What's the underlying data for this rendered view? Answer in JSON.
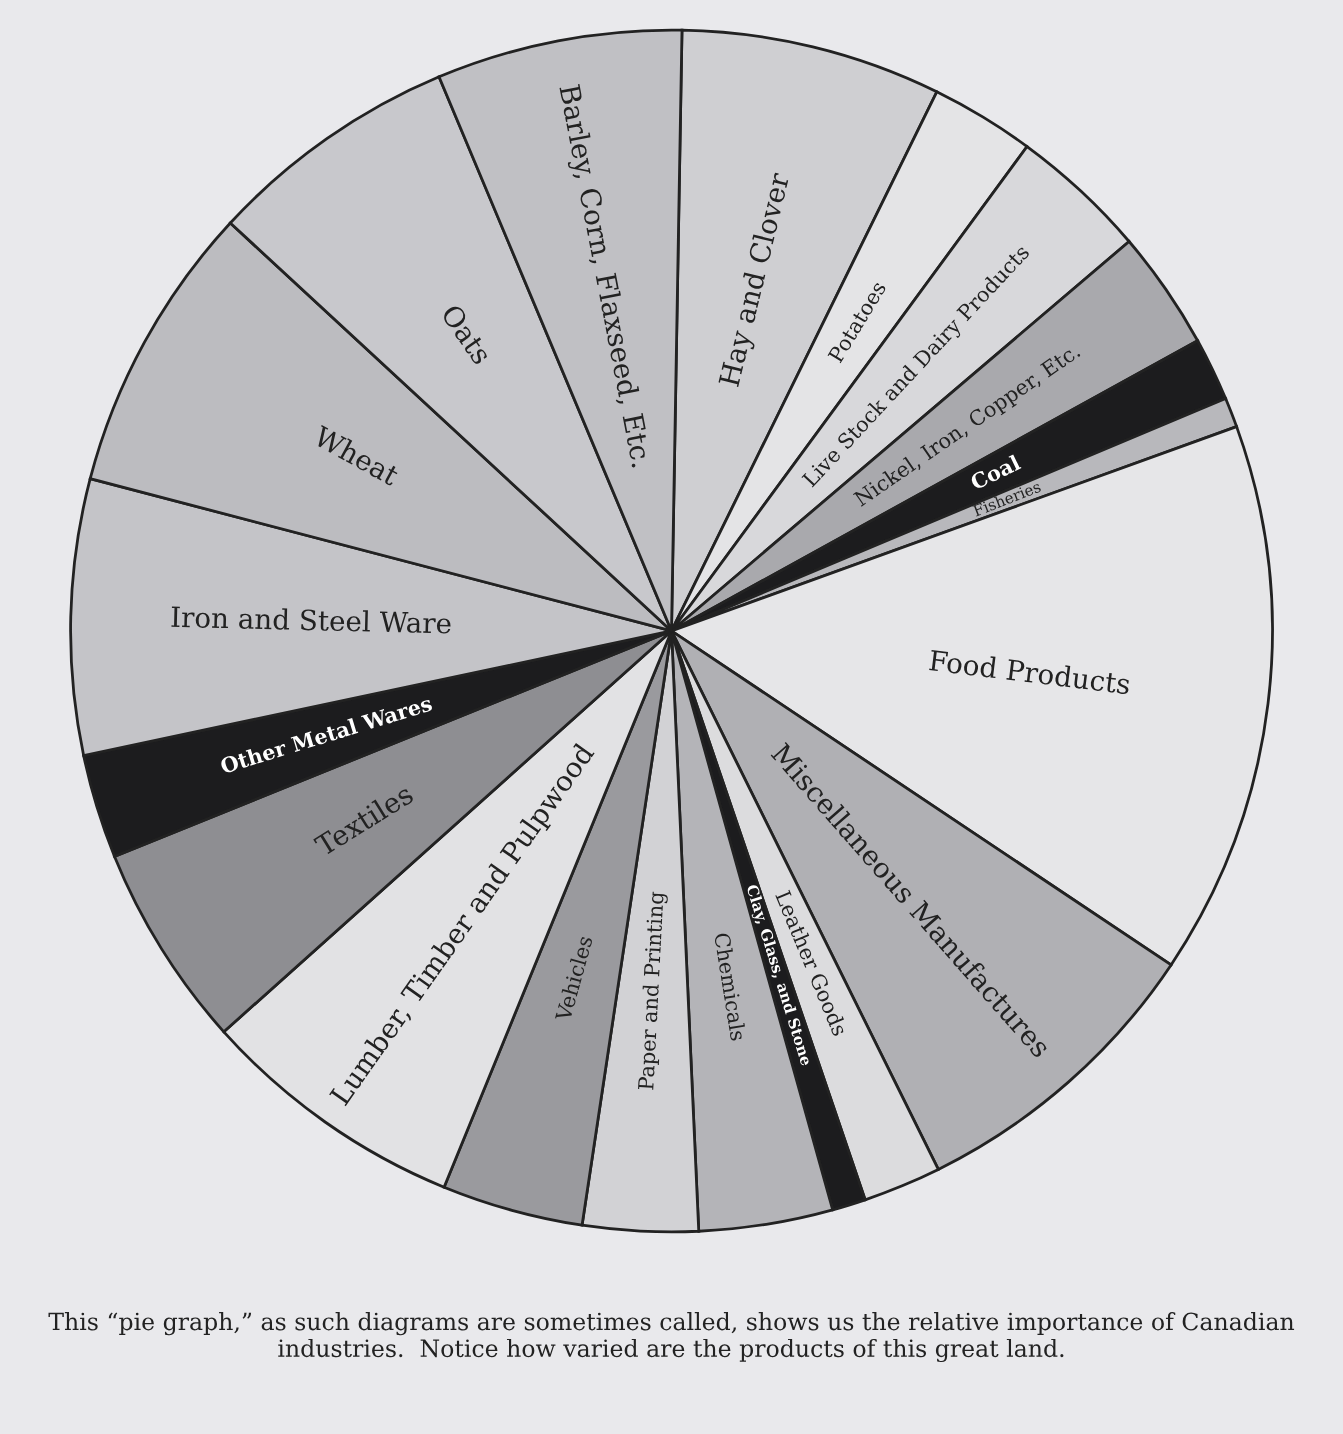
{
  "chart_data": {
    "type": "pie",
    "categories": [
      "Hay and Clover",
      "Potatoes",
      "Live Stock and Dairy Products",
      "Nickel, Iron, Copper, Etc.",
      "Coal",
      "Fisheries",
      "Food Products",
      "Miscellaneous Manufactures",
      "Leather Goods",
      "Clay, Glass, and Stone",
      "Chemicals",
      "Paper and Printing",
      "Vehicles",
      "Lumber, Timber and Pulpwood",
      "Textiles",
      "Other Metal Wares",
      "Iron and Steel Ware",
      "Wheat",
      "Oats",
      "Barley, Corn, Flaxseed, Etc."
    ],
    "values": [
      7.0,
      2.8,
      3.7,
      3.2,
      1.7,
      0.8,
      14.9,
      8.3,
      2.1,
      0.9,
      3.6,
      3.1,
      3.8,
      7.2,
      5.5,
      2.8,
      7.4,
      7.8,
      6.8,
      6.6
    ],
    "colors": [
      "#cfcfd2",
      "#e4e4e6",
      "#d8d8db",
      "#a9a9ad",
      "#1c1c1e",
      "#b8b8bc",
      "#e6e6e8",
      "#b0b0b4",
      "#dcdcde",
      "#1c1c1e",
      "#b4b4b8",
      "#d2d2d5",
      "#9a9a9e",
      "#e2e2e4",
      "#8e8e92",
      "#1c1c1e",
      "#c4c4c8",
      "#bcbcc0",
      "#c8c8cc",
      "#c0c0c4"
    ],
    "annotations": [
      "This “pie graph,” as such diagrams are sometimes called, shows us the relative importance of Canadian industries.  Notice how varied are the products of this great land."
    ]
  }
}
